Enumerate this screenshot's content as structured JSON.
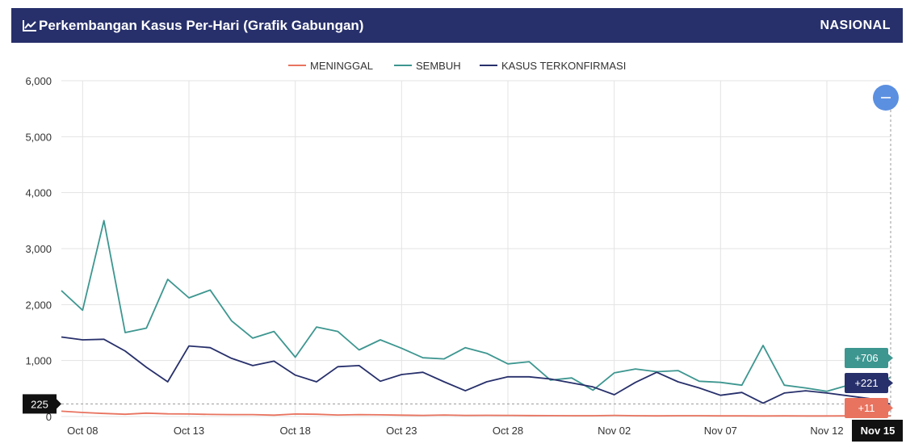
{
  "header": {
    "title": "Perkembangan Kasus Per-Hari (Grafik Gabungan)",
    "scope": "NASIONAL",
    "title_icon": "line-chart-icon"
  },
  "crosshair": {
    "y_label": "225",
    "x_label": "Nov 15",
    "zoom_button_icon": "minus-icon"
  },
  "tooltips": [
    {
      "series": "SEMBUH",
      "text": "+706"
    },
    {
      "series": "KASUS TERKONFIRMASI",
      "text": "+221"
    },
    {
      "series": "MENINGGAL",
      "text": "+11"
    }
  ],
  "chart_data": {
    "type": "line",
    "title": "",
    "xlabel": "",
    "ylabel": "",
    "ylim": [
      0,
      6000
    ],
    "y_ticks": [
      0,
      1000,
      2000,
      3000,
      4000,
      5000,
      6000
    ],
    "y_tick_labels": [
      "0",
      "1,000",
      "2,000",
      "3,000",
      "4,000",
      "5,000",
      "6,000"
    ],
    "x_tick_labels": [
      "Oct 08",
      "Oct 13",
      "Oct 18",
      "Oct 23",
      "Oct 28",
      "Nov 02",
      "Nov 07",
      "Nov 12"
    ],
    "grid": true,
    "legend_position": "top-center",
    "x": [
      "2021-10-07",
      "2021-10-08",
      "2021-10-09",
      "2021-10-10",
      "2021-10-11",
      "2021-10-12",
      "2021-10-13",
      "2021-10-14",
      "2021-10-15",
      "2021-10-16",
      "2021-10-17",
      "2021-10-18",
      "2021-10-19",
      "2021-10-20",
      "2021-10-21",
      "2021-10-22",
      "2021-10-23",
      "2021-10-24",
      "2021-10-25",
      "2021-10-26",
      "2021-10-27",
      "2021-10-28",
      "2021-10-29",
      "2021-10-30",
      "2021-10-31",
      "2021-11-01",
      "2021-11-02",
      "2021-11-03",
      "2021-11-04",
      "2021-11-05",
      "2021-11-06",
      "2021-11-07",
      "2021-11-08",
      "2021-11-09",
      "2021-11-10",
      "2021-11-11",
      "2021-11-12",
      "2021-11-13",
      "2021-11-14",
      "2021-11-15"
    ],
    "series": [
      {
        "name": "MENINGGAL",
        "color": "#e8735f",
        "values": [
          95,
          72,
          55,
          40,
          60,
          48,
          45,
          38,
          35,
          35,
          25,
          45,
          40,
          28,
          35,
          30,
          25,
          20,
          28,
          20,
          22,
          20,
          18,
          16,
          15,
          14,
          20,
          15,
          12,
          14,
          15,
          12,
          12,
          10,
          12,
          10,
          10,
          12,
          12,
          11
        ]
      },
      {
        "name": "SEMBUH",
        "color": "#3d9690",
        "values": [
          2250,
          1900,
          3500,
          1500,
          1580,
          2450,
          2120,
          2260,
          1710,
          1400,
          1520,
          1060,
          1600,
          1520,
          1190,
          1370,
          1220,
          1050,
          1030,
          1230,
          1130,
          940,
          980,
          650,
          690,
          470,
          780,
          850,
          800,
          820,
          630,
          610,
          560,
          1270,
          560,
          510,
          450,
          560,
          470,
          706
        ]
      },
      {
        "name": "KASUS TERKONFIRMASI",
        "color": "#27306b",
        "values": [
          1420,
          1370,
          1380,
          1170,
          880,
          620,
          1260,
          1230,
          1040,
          910,
          990,
          740,
          620,
          890,
          910,
          630,
          750,
          790,
          620,
          460,
          620,
          710,
          710,
          670,
          600,
          530,
          390,
          610,
          790,
          620,
          510,
          380,
          430,
          240,
          420,
          460,
          420,
          370,
          320,
          221
        ]
      }
    ]
  }
}
